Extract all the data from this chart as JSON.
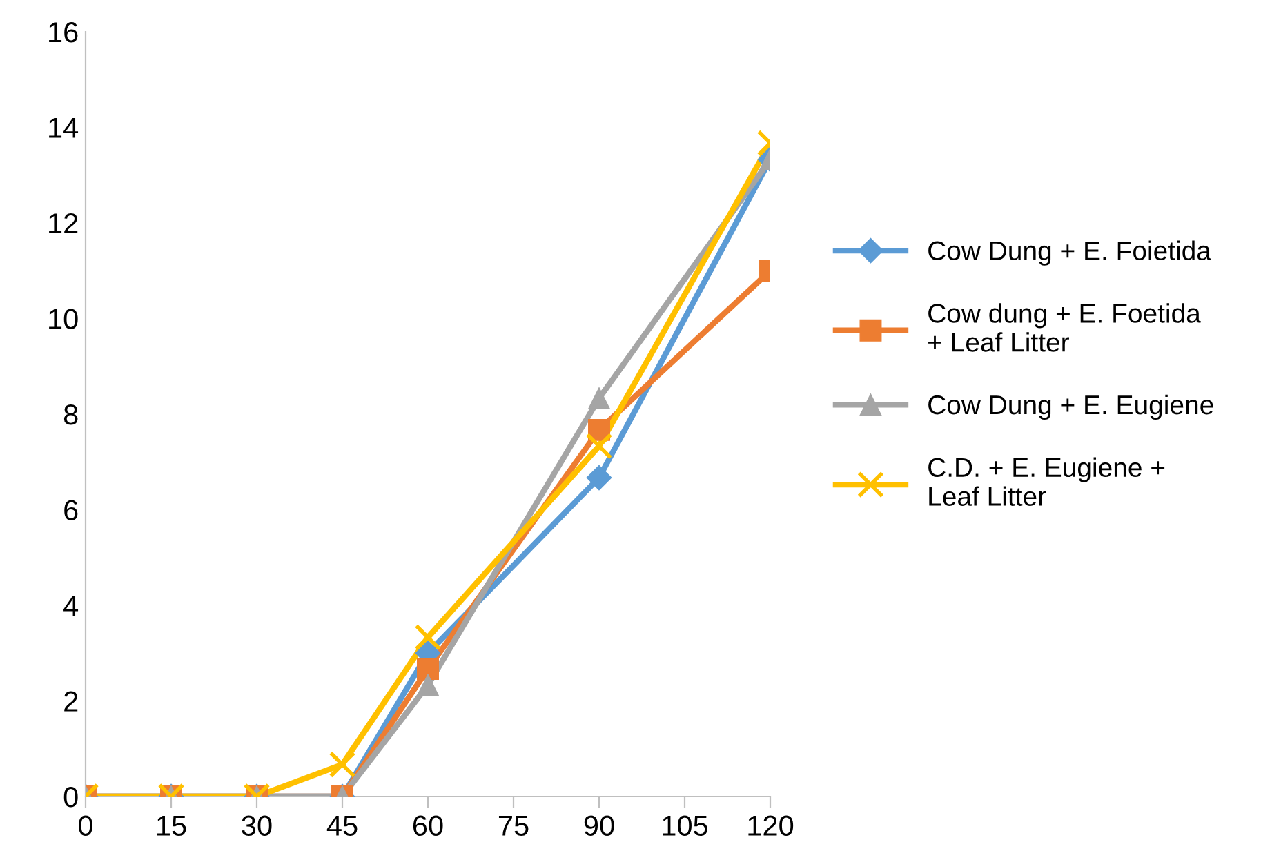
{
  "chart_data": {
    "type": "line",
    "x": [
      0,
      15,
      30,
      45,
      60,
      90,
      120
    ],
    "series": [
      {
        "name": "Cow Dung + E. Foietida",
        "color": "#5b9bd5",
        "marker": "diamond",
        "values": [
          0,
          0,
          0,
          0,
          3.0,
          6.67,
          13.33
        ]
      },
      {
        "name": "Cow dung + E. Foetida + Leaf Litter",
        "color": "#ed7d31",
        "marker": "square",
        "values": [
          0,
          0,
          0,
          0,
          2.67,
          7.67,
          11.0
        ]
      },
      {
        "name": "Cow Dung + E. Eugiene",
        "color": "#a5a5a5",
        "marker": "triangle",
        "values": [
          0,
          0,
          0,
          0,
          2.33,
          8.33,
          13.33
        ]
      },
      {
        "name": "C.D. + E. Eugiene + Leaf Litter",
        "color": "#ffc000",
        "marker": "cross",
        "values": [
          0,
          0,
          0,
          0.67,
          3.33,
          7.33,
          13.67
        ]
      }
    ],
    "xlim": [
      0,
      120
    ],
    "xticks": [
      0,
      15,
      30,
      45,
      60,
      75,
      90,
      105,
      120
    ],
    "ylim": [
      0,
      16
    ],
    "yticks": [
      0,
      2,
      4,
      6,
      8,
      10,
      12,
      14,
      16
    ],
    "grid": false,
    "legend": "right",
    "line_style": "solid"
  }
}
